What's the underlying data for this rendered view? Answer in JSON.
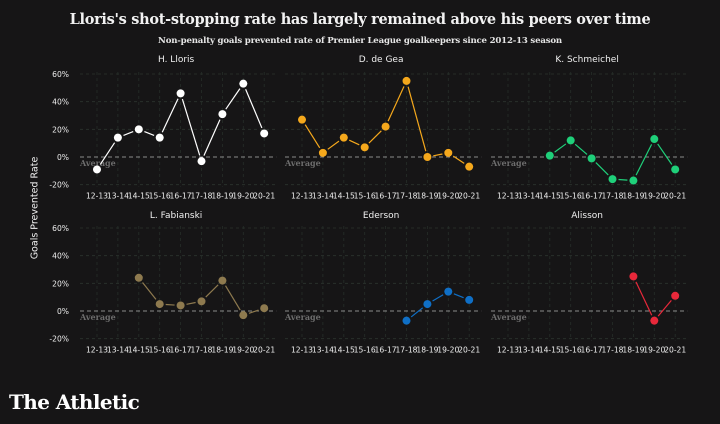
{
  "title": "Lloris's shot-stopping rate has largely remained above his peers over time",
  "subtitle": "Non-penalty goals prevented rate of Premier League goalkeepers since 2012-13 season",
  "brand": "The Athletic",
  "chart_data": {
    "type": "line",
    "title": "Lloris's shot-stopping rate has largely remained above his peers over time",
    "subtitle": "Non-penalty goals prevented rate of Premier League goalkeepers since 2012-13 season",
    "ylabel": "Goals Prevented Rate",
    "xlabel": "",
    "x": [
      "12-13",
      "13-14",
      "14-15",
      "15-16",
      "16-17",
      "17-18",
      "18-19",
      "19-20",
      "20-21"
    ],
    "yticks": [
      "60%",
      "40%",
      "20%",
      "0%",
      "-20%"
    ],
    "ytick_values": [
      60,
      40,
      20,
      0,
      -20
    ],
    "ylim": [
      -20,
      60
    ],
    "grid": true,
    "reference_line": {
      "value": 0,
      "label": "Average"
    },
    "panels": [
      {
        "name": "H. Lloris",
        "color": "#ffffff",
        "values": [
          -9,
          14,
          20,
          14,
          46,
          -3,
          31,
          53,
          17
        ]
      },
      {
        "name": "D. de Gea",
        "color": "#f5a81c",
        "values": [
          27,
          3,
          14,
          7,
          22,
          55,
          0,
          3,
          -7
        ]
      },
      {
        "name": "K. Schmeichel",
        "color": "#1fd07a",
        "values": [
          null,
          null,
          1,
          12,
          -1,
          -16,
          -17,
          13,
          -9
        ]
      },
      {
        "name": "L. Fabianski",
        "color": "#8e7a4f",
        "values": [
          null,
          null,
          24,
          5,
          4,
          7,
          22,
          -3,
          2
        ]
      },
      {
        "name": "Ederson",
        "color": "#0f6fc6",
        "values": [
          null,
          null,
          null,
          null,
          null,
          -7,
          5,
          14,
          8
        ]
      },
      {
        "name": "Alisson",
        "color": "#e8283a",
        "values": [
          null,
          null,
          null,
          null,
          null,
          null,
          25,
          -7,
          11
        ]
      }
    ]
  }
}
